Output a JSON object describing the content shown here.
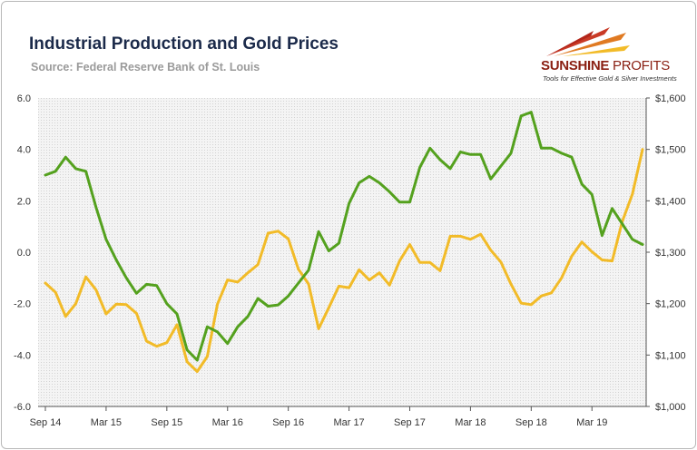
{
  "title": "Industrial Production and Gold Prices",
  "subtitle": "Source: Federal Reserve Bank of St. Louis",
  "logo": {
    "name_bold": "SUNSHINE",
    "name_thin": " PROFITS",
    "tagline": "Tools for Effective Gold & Silver Investments"
  },
  "chart_data": {
    "type": "line",
    "title": "Industrial Production and Gold Prices",
    "x": [
      "2014-09",
      "2014-10",
      "2014-11",
      "2014-12",
      "2015-01",
      "2015-02",
      "2015-03",
      "2015-04",
      "2015-05",
      "2015-06",
      "2015-07",
      "2015-08",
      "2015-09",
      "2015-10",
      "2015-11",
      "2015-12",
      "2016-01",
      "2016-02",
      "2016-03",
      "2016-04",
      "2016-05",
      "2016-06",
      "2016-07",
      "2016-08",
      "2016-09",
      "2016-10",
      "2016-11",
      "2016-12",
      "2017-01",
      "2017-02",
      "2017-03",
      "2017-04",
      "2017-05",
      "2017-06",
      "2017-07",
      "2017-08",
      "2017-09",
      "2017-10",
      "2017-11",
      "2017-12",
      "2018-01",
      "2018-02",
      "2018-03",
      "2018-04",
      "2018-05",
      "2018-06",
      "2018-07",
      "2018-08",
      "2018-09",
      "2018-10",
      "2018-11",
      "2018-12",
      "2019-01",
      "2019-02",
      "2019-03",
      "2019-04",
      "2019-05",
      "2019-06",
      "2019-07",
      "2019-08"
    ],
    "x_tick_labels": [
      "Sep 14",
      "Mar 15",
      "Sep 15",
      "Mar 16",
      "Sep 16",
      "Mar 17",
      "Sep 17",
      "Mar 18",
      "Sep 18",
      "Mar 19"
    ],
    "series": [
      {
        "axis": "left",
        "color": "#54a11e",
        "values": [
          3.0,
          3.15,
          3.7,
          3.25,
          3.15,
          1.75,
          0.5,
          -0.3,
          -1.0,
          -1.6,
          -1.25,
          -1.3,
          -2.0,
          -2.4,
          -3.8,
          -4.2,
          -2.9,
          -3.1,
          -3.55,
          -2.9,
          -2.5,
          -1.8,
          -2.1,
          -2.05,
          -1.7,
          -1.2,
          -0.7,
          0.8,
          0.05,
          0.35,
          1.9,
          2.7,
          2.95,
          2.7,
          2.35,
          1.95,
          1.95,
          3.3,
          4.05,
          3.6,
          3.25,
          3.9,
          3.8,
          3.8,
          2.85,
          3.35,
          3.85,
          5.3,
          5.45,
          4.05,
          4.05,
          3.85,
          3.7,
          2.65,
          2.25,
          0.65,
          1.7,
          1.1,
          0.5,
          0.3
        ]
      },
      {
        "axis": "right",
        "color": "#f2bb28",
        "values": [
          1240,
          1222,
          1175,
          1200,
          1252,
          1227,
          1180,
          1199,
          1198,
          1181,
          1127,
          1117,
          1124,
          1159,
          1087,
          1068,
          1097,
          1199,
          1246,
          1242,
          1260,
          1276,
          1337,
          1341,
          1326,
          1267,
          1238,
          1151,
          1192,
          1234,
          1231,
          1266,
          1246,
          1260,
          1236,
          1283,
          1315,
          1280,
          1280,
          1264,
          1331,
          1331,
          1325,
          1335,
          1304,
          1281,
          1238,
          1201,
          1198,
          1215,
          1221,
          1250,
          1292,
          1320,
          1301,
          1285,
          1283,
          1360,
          1413,
          1500
        ]
      }
    ],
    "yaxis_left": {
      "min": -6,
      "max": 6,
      "ticks": [
        "6.0",
        "4.0",
        "2.0",
        "0.0",
        "-2.0",
        "-4.0",
        "-6.0"
      ]
    },
    "yaxis_right": {
      "min": 1000,
      "max": 1600,
      "ticks": [
        "$1,600",
        "$1,500",
        "$1,400",
        "$1,300",
        "$1,200",
        "$1,100",
        "$1,000"
      ]
    },
    "grid": false,
    "legend": "none",
    "background": "dotted-gray"
  }
}
